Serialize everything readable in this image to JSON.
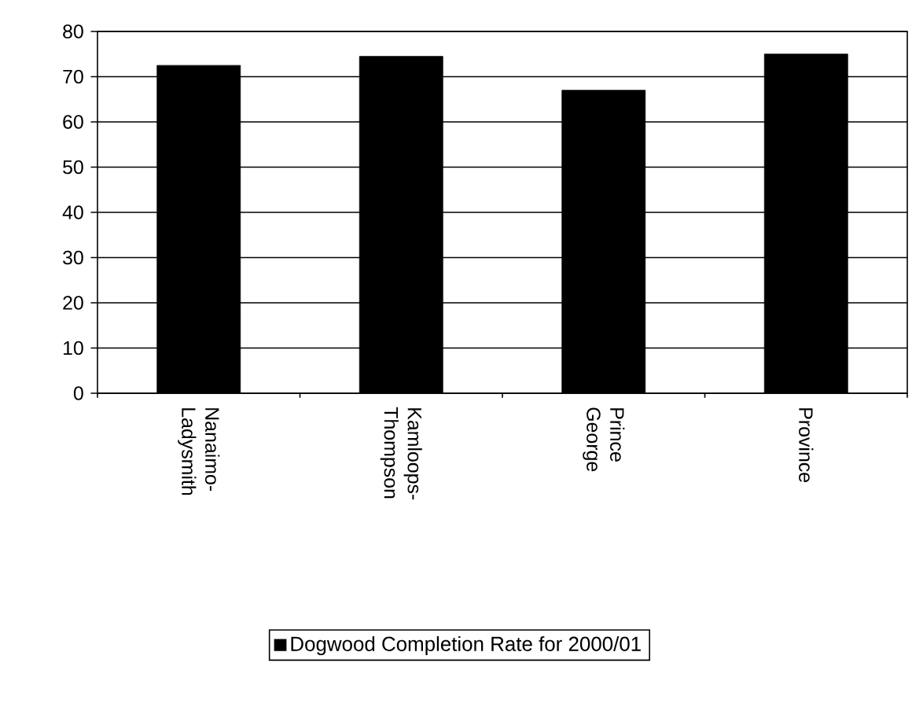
{
  "chart_data": {
    "type": "bar",
    "categories": [
      "Nanaimo-Ladysmith",
      "Kamloops-Thompson",
      "Prince George",
      "Province"
    ],
    "series": [
      {
        "name": "Dogwood Completion Rate for 2000/01",
        "color": "#000000",
        "values": [
          72.5,
          74.5,
          67,
          75
        ]
      }
    ],
    "ylim": [
      0,
      80
    ],
    "yticks": [
      0,
      10,
      20,
      30,
      40,
      50,
      60,
      70,
      80
    ],
    "grid": "y",
    "legend": "bottom"
  }
}
